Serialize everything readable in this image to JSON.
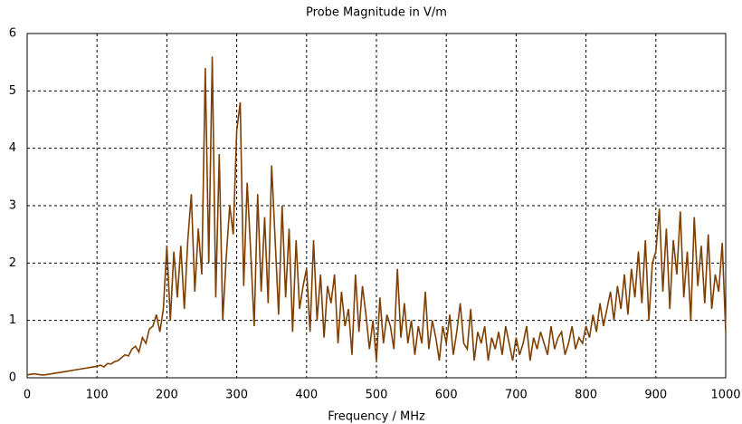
{
  "chart_data": {
    "type": "line",
    "title": "Probe Magnitude in V/m",
    "x_label": "Frequency / MHz",
    "xlim": [
      0,
      1000
    ],
    "xticks": [
      0,
      100,
      200,
      300,
      400,
      500,
      600,
      700,
      800,
      900,
      1000
    ],
    "ylim": [
      0,
      6
    ],
    "yticks": [
      0,
      1,
      2,
      3,
      4,
      5,
      6
    ],
    "grid": true,
    "x": [
      0,
      5,
      10,
      15,
      20,
      25,
      30,
      35,
      40,
      45,
      50,
      55,
      60,
      65,
      70,
      75,
      80,
      85,
      90,
      95,
      100,
      105,
      110,
      115,
      120,
      125,
      130,
      135,
      140,
      145,
      150,
      155,
      160,
      165,
      170,
      175,
      180,
      185,
      190,
      195,
      200,
      205,
      210,
      215,
      220,
      225,
      230,
      235,
      240,
      245,
      250,
      255,
      260,
      265,
      270,
      275,
      280,
      285,
      290,
      295,
      300,
      305,
      310,
      315,
      320,
      325,
      330,
      335,
      340,
      345,
      350,
      355,
      360,
      365,
      370,
      375,
      380,
      385,
      390,
      395,
      400,
      405,
      410,
      415,
      420,
      425,
      430,
      435,
      440,
      445,
      450,
      455,
      460,
      465,
      470,
      475,
      480,
      485,
      490,
      495,
      500,
      505,
      510,
      515,
      520,
      525,
      530,
      535,
      540,
      545,
      550,
      555,
      560,
      565,
      570,
      575,
      580,
      585,
      590,
      595,
      600,
      605,
      610,
      615,
      620,
      625,
      630,
      635,
      640,
      645,
      650,
      655,
      660,
      665,
      670,
      675,
      680,
      685,
      690,
      695,
      700,
      705,
      710,
      715,
      720,
      725,
      730,
      735,
      740,
      745,
      750,
      755,
      760,
      765,
      770,
      775,
      780,
      785,
      790,
      795,
      800,
      805,
      810,
      815,
      820,
      825,
      830,
      835,
      840,
      845,
      850,
      855,
      860,
      865,
      870,
      875,
      880,
      885,
      890,
      895,
      900,
      905,
      910,
      915,
      920,
      925,
      930,
      935,
      940,
      945,
      950,
      955,
      960,
      965,
      970,
      975,
      980,
      985,
      990,
      995,
      1000
    ],
    "series": [
      {
        "color": "#7f3f00",
        "values": [
          0.05,
          0.06,
          0.07,
          0.06,
          0.05,
          0.05,
          0.06,
          0.07,
          0.08,
          0.09,
          0.1,
          0.11,
          0.12,
          0.13,
          0.14,
          0.15,
          0.16,
          0.17,
          0.18,
          0.19,
          0.2,
          0.22,
          0.19,
          0.25,
          0.24,
          0.28,
          0.3,
          0.35,
          0.4,
          0.38,
          0.5,
          0.55,
          0.45,
          0.7,
          0.6,
          0.85,
          0.9,
          1.1,
          0.8,
          1.2,
          2.3,
          1.0,
          2.2,
          1.4,
          2.3,
          1.2,
          2.4,
          3.2,
          1.5,
          2.6,
          1.8,
          5.4,
          2.0,
          5.6,
          1.4,
          3.9,
          1.0,
          2.1,
          3.0,
          2.5,
          4.3,
          4.8,
          1.6,
          3.4,
          2.2,
          0.9,
          3.2,
          1.5,
          2.8,
          1.3,
          3.7,
          2.4,
          1.1,
          3.0,
          1.4,
          2.6,
          0.8,
          2.4,
          1.2,
          1.6,
          1.9,
          0.8,
          2.4,
          1.0,
          1.8,
          0.7,
          1.6,
          1.3,
          1.8,
          0.6,
          1.5,
          0.9,
          1.2,
          0.4,
          1.8,
          0.8,
          1.6,
          1.1,
          0.5,
          1.0,
          0.3,
          1.4,
          0.6,
          1.1,
          0.9,
          0.5,
          1.9,
          0.7,
          1.3,
          0.6,
          1.0,
          0.4,
          0.9,
          0.6,
          1.5,
          0.5,
          1.0,
          0.7,
          0.3,
          0.9,
          0.6,
          1.1,
          0.4,
          0.8,
          1.3,
          0.6,
          0.5,
          1.2,
          0.3,
          0.8,
          0.6,
          0.9,
          0.3,
          0.7,
          0.5,
          0.8,
          0.4,
          0.9,
          0.6,
          0.3,
          0.7,
          0.4,
          0.6,
          0.9,
          0.3,
          0.7,
          0.5,
          0.8,
          0.6,
          0.4,
          0.9,
          0.5,
          0.7,
          0.8,
          0.4,
          0.6,
          0.9,
          0.5,
          0.7,
          0.6,
          0.9,
          0.7,
          1.1,
          0.8,
          1.3,
          0.9,
          1.2,
          1.5,
          1.0,
          1.6,
          1.2,
          1.8,
          1.1,
          1.9,
          1.4,
          2.2,
          1.3,
          2.4,
          1.0,
          2.0,
          2.2,
          2.95,
          1.5,
          2.6,
          1.2,
          2.4,
          1.8,
          2.9,
          1.4,
          2.2,
          1.0,
          2.8,
          1.6,
          2.3,
          1.3,
          2.5,
          1.2,
          1.8,
          1.5,
          2.35,
          0.8
        ]
      }
    ]
  }
}
